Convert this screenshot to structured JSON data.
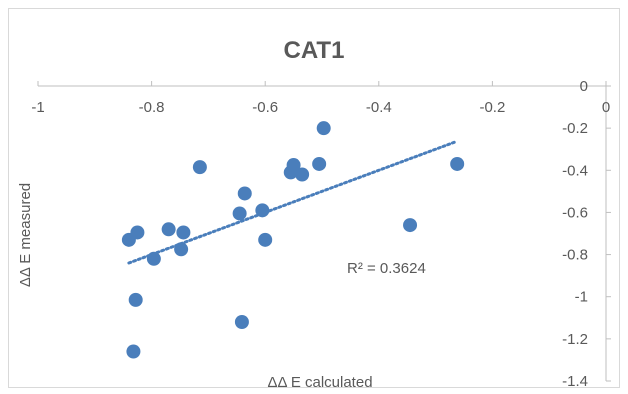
{
  "chart_data": {
    "type": "scatter",
    "title": "CAT1",
    "xlabel": "ΔΔ E calculated",
    "ylabel": "ΔΔ E measured",
    "xlim": [
      -1,
      0
    ],
    "ylim": [
      -1.4,
      0
    ],
    "x_ticks": [
      "-1",
      "-0.8",
      "-0.6",
      "-0.4",
      "-0.2",
      "0"
    ],
    "y_ticks": [
      "0",
      "-0.2",
      "-0.4",
      "-0.6",
      "-0.8",
      "-1",
      "-1.2",
      "-1.4"
    ],
    "grid": false,
    "legend": "none",
    "marker_color": "#4a7ebb",
    "trendline_color": "#4a7ebb",
    "annotation": "R² = 0.3624",
    "trendline": {
      "x": [
        -0.84,
        -0.265
      ],
      "y": [
        -0.84,
        -0.265
      ]
    },
    "points": [
      {
        "x": -0.84,
        "y": -0.73
      },
      {
        "x": -0.825,
        "y": -0.695
      },
      {
        "x": -0.828,
        "y": -1.015
      },
      {
        "x": -0.832,
        "y": -1.26
      },
      {
        "x": -0.796,
        "y": -0.82
      },
      {
        "x": -0.77,
        "y": -0.68
      },
      {
        "x": -0.748,
        "y": -0.775
      },
      {
        "x": -0.744,
        "y": -0.695
      },
      {
        "x": -0.715,
        "y": -0.385
      },
      {
        "x": -0.645,
        "y": -0.605
      },
      {
        "x": -0.636,
        "y": -0.51
      },
      {
        "x": -0.641,
        "y": -1.12
      },
      {
        "x": -0.605,
        "y": -0.59
      },
      {
        "x": -0.6,
        "y": -0.73
      },
      {
        "x": -0.555,
        "y": -0.41
      },
      {
        "x": -0.55,
        "y": -0.375
      },
      {
        "x": -0.535,
        "y": -0.42
      },
      {
        "x": -0.505,
        "y": -0.37
      },
      {
        "x": -0.497,
        "y": -0.2
      },
      {
        "x": -0.345,
        "y": -0.66
      },
      {
        "x": -0.262,
        "y": -0.37
      }
    ]
  }
}
